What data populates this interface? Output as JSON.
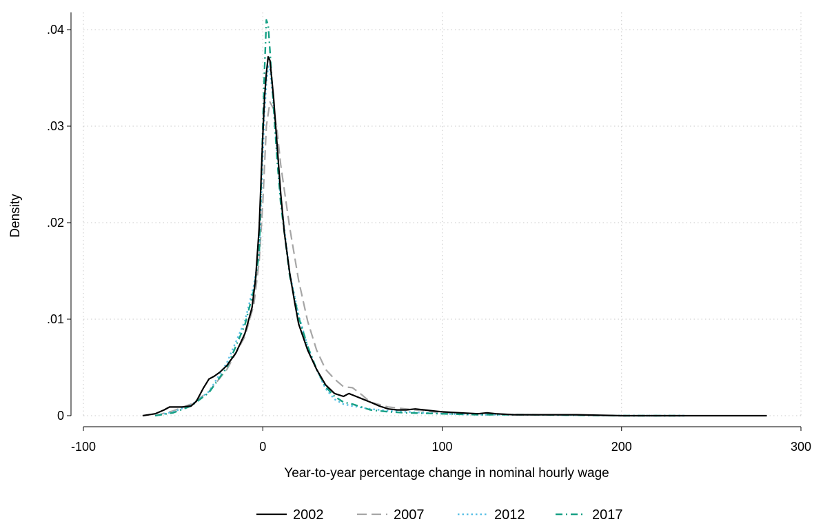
{
  "chart_data": {
    "type": "line",
    "title": "",
    "xlabel": "Year-to-year percentage change in nominal hourly wage",
    "ylabel": "Density",
    "xlim": [
      -100,
      300
    ],
    "ylim": [
      0,
      0.042
    ],
    "grid": true,
    "legend_position": "bottom",
    "x_ticks": [
      {
        "value": -100,
        "label": "-100"
      },
      {
        "value": 0,
        "label": "0"
      },
      {
        "value": 100,
        "label": "100"
      },
      {
        "value": 200,
        "label": "200"
      },
      {
        "value": 300,
        "label": "300"
      }
    ],
    "y_ticks": [
      {
        "value": 0,
        "label": "0"
      },
      {
        "value": 0.01,
        "label": ".01"
      },
      {
        "value": 0.02,
        "label": ".02"
      },
      {
        "value": 0.03,
        "label": ".03"
      },
      {
        "value": 0.04,
        "label": ".04"
      }
    ],
    "series": [
      {
        "name": "2002",
        "color": "#000000",
        "dash": "solid",
        "x": [
          -67,
          -60,
          -55,
          -52,
          -48,
          -45,
          -40,
          -37,
          -33,
          -30,
          -27,
          -24,
          -20,
          -15,
          -10,
          -6,
          -4,
          -2,
          0,
          1,
          2,
          3,
          4,
          6,
          8,
          10,
          12,
          15,
          18,
          20,
          25,
          30,
          35,
          40,
          45,
          48,
          52,
          56,
          60,
          65,
          70,
          75,
          80,
          85,
          90,
          100,
          110,
          120,
          125,
          130,
          140,
          150,
          175,
          200,
          240,
          278,
          281
        ],
        "y": [
          0.0,
          0.0002,
          0.0006,
          0.0009,
          0.0009,
          0.0009,
          0.001,
          0.0015,
          0.0029,
          0.0038,
          0.0041,
          0.0045,
          0.0052,
          0.0065,
          0.0085,
          0.0112,
          0.0142,
          0.0195,
          0.029,
          0.033,
          0.0355,
          0.0372,
          0.0368,
          0.033,
          0.028,
          0.023,
          0.019,
          0.0148,
          0.0115,
          0.0095,
          0.0068,
          0.0048,
          0.0032,
          0.0023,
          0.002,
          0.0023,
          0.002,
          0.0017,
          0.0014,
          0.001,
          0.0007,
          0.0006,
          0.0006,
          0.0007,
          0.0006,
          0.0004,
          0.0003,
          0.0002,
          0.0003,
          0.0002,
          0.0001,
          0.0001,
          0.0001,
          0.0,
          0.0,
          0.0,
          0.0
        ]
      },
      {
        "name": "2007",
        "color": "#a6a6a6",
        "dash": "long-dash",
        "x": [
          -60,
          -50,
          -40,
          -30,
          -20,
          -10,
          -5,
          -2,
          0,
          2,
          4,
          6,
          8,
          10,
          15,
          20,
          25,
          30,
          35,
          40,
          45,
          50,
          55,
          60,
          70,
          80,
          90,
          100,
          120,
          150,
          200,
          235
        ],
        "y": [
          0.0,
          0.0005,
          0.0012,
          0.0025,
          0.0048,
          0.0082,
          0.0115,
          0.016,
          0.022,
          0.03,
          0.0325,
          0.0318,
          0.0295,
          0.026,
          0.0195,
          0.014,
          0.0098,
          0.0068,
          0.0048,
          0.0038,
          0.003,
          0.0029,
          0.0022,
          0.0014,
          0.0009,
          0.0007,
          0.0005,
          0.0003,
          0.0002,
          0.0001,
          0.0,
          0.0
        ]
      },
      {
        "name": "2012",
        "color": "#5bc0e6",
        "dash": "dotted",
        "x": [
          -60,
          -50,
          -40,
          -30,
          -20,
          -10,
          -5,
          -2,
          0,
          1,
          2,
          3,
          4,
          6,
          8,
          10,
          15,
          20,
          25,
          30,
          35,
          40,
          45,
          50,
          60,
          70,
          80,
          100,
          120,
          150,
          200,
          235
        ],
        "y": [
          0.0,
          0.0004,
          0.0011,
          0.0025,
          0.0055,
          0.0098,
          0.0135,
          0.017,
          0.027,
          0.0315,
          0.0345,
          0.0362,
          0.0358,
          0.0325,
          0.0272,
          0.0225,
          0.0148,
          0.0104,
          0.0072,
          0.0048,
          0.0028,
          0.0017,
          0.0012,
          0.001,
          0.0007,
          0.0005,
          0.0004,
          0.0002,
          0.0001,
          0.0001,
          0.0,
          0.0
        ]
      },
      {
        "name": "2017",
        "color": "#17a085",
        "dash": "dash-dot",
        "x": [
          -60,
          -50,
          -40,
          -30,
          -20,
          -10,
          -5,
          -2,
          0,
          1,
          2,
          3,
          4,
          6,
          8,
          10,
          15,
          20,
          25,
          30,
          35,
          40,
          45,
          50,
          60,
          70,
          80,
          100,
          120,
          150,
          200,
          235
        ],
        "y": [
          0.0,
          0.0003,
          0.001,
          0.0024,
          0.005,
          0.0094,
          0.013,
          0.0168,
          0.03,
          0.036,
          0.041,
          0.0405,
          0.0378,
          0.032,
          0.0265,
          0.022,
          0.0145,
          0.0102,
          0.0072,
          0.0048,
          0.003,
          0.002,
          0.0014,
          0.0012,
          0.0006,
          0.0004,
          0.0003,
          0.0002,
          0.0001,
          0.0001,
          0.0,
          0.0
        ]
      }
    ]
  }
}
